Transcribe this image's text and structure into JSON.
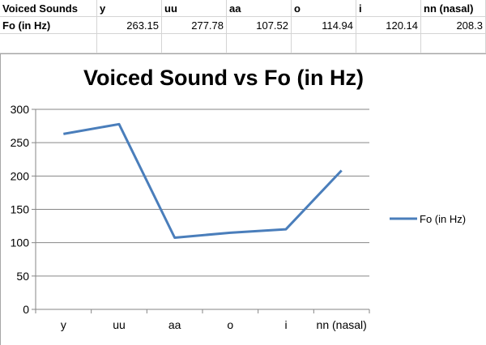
{
  "sheet": {
    "row1": [
      "Voiced Sounds",
      "y",
      "uu",
      "aa",
      "o",
      "i",
      "nn (nasal)"
    ],
    "row2": [
      "Fo (in Hz)",
      "263.15",
      "277.78",
      "107.52",
      "114.94",
      "120.14",
      "208.3"
    ]
  },
  "chart_data": {
    "type": "line",
    "title": "Voiced Sound vs Fo (in Hz)",
    "categories": [
      "y",
      "uu",
      "aa",
      "o",
      "i",
      "nn (nasal)"
    ],
    "series": [
      {
        "name": "Fo (in Hz)",
        "values": [
          263.15,
          277.78,
          107.52,
          114.94,
          120.14,
          208.3
        ],
        "color": "#4a7ebb"
      }
    ],
    "yticks": [
      "0",
      "50",
      "100",
      "150",
      "200",
      "250",
      "300"
    ],
    "ylim": [
      0,
      300
    ],
    "grid": true,
    "legend": "right"
  }
}
